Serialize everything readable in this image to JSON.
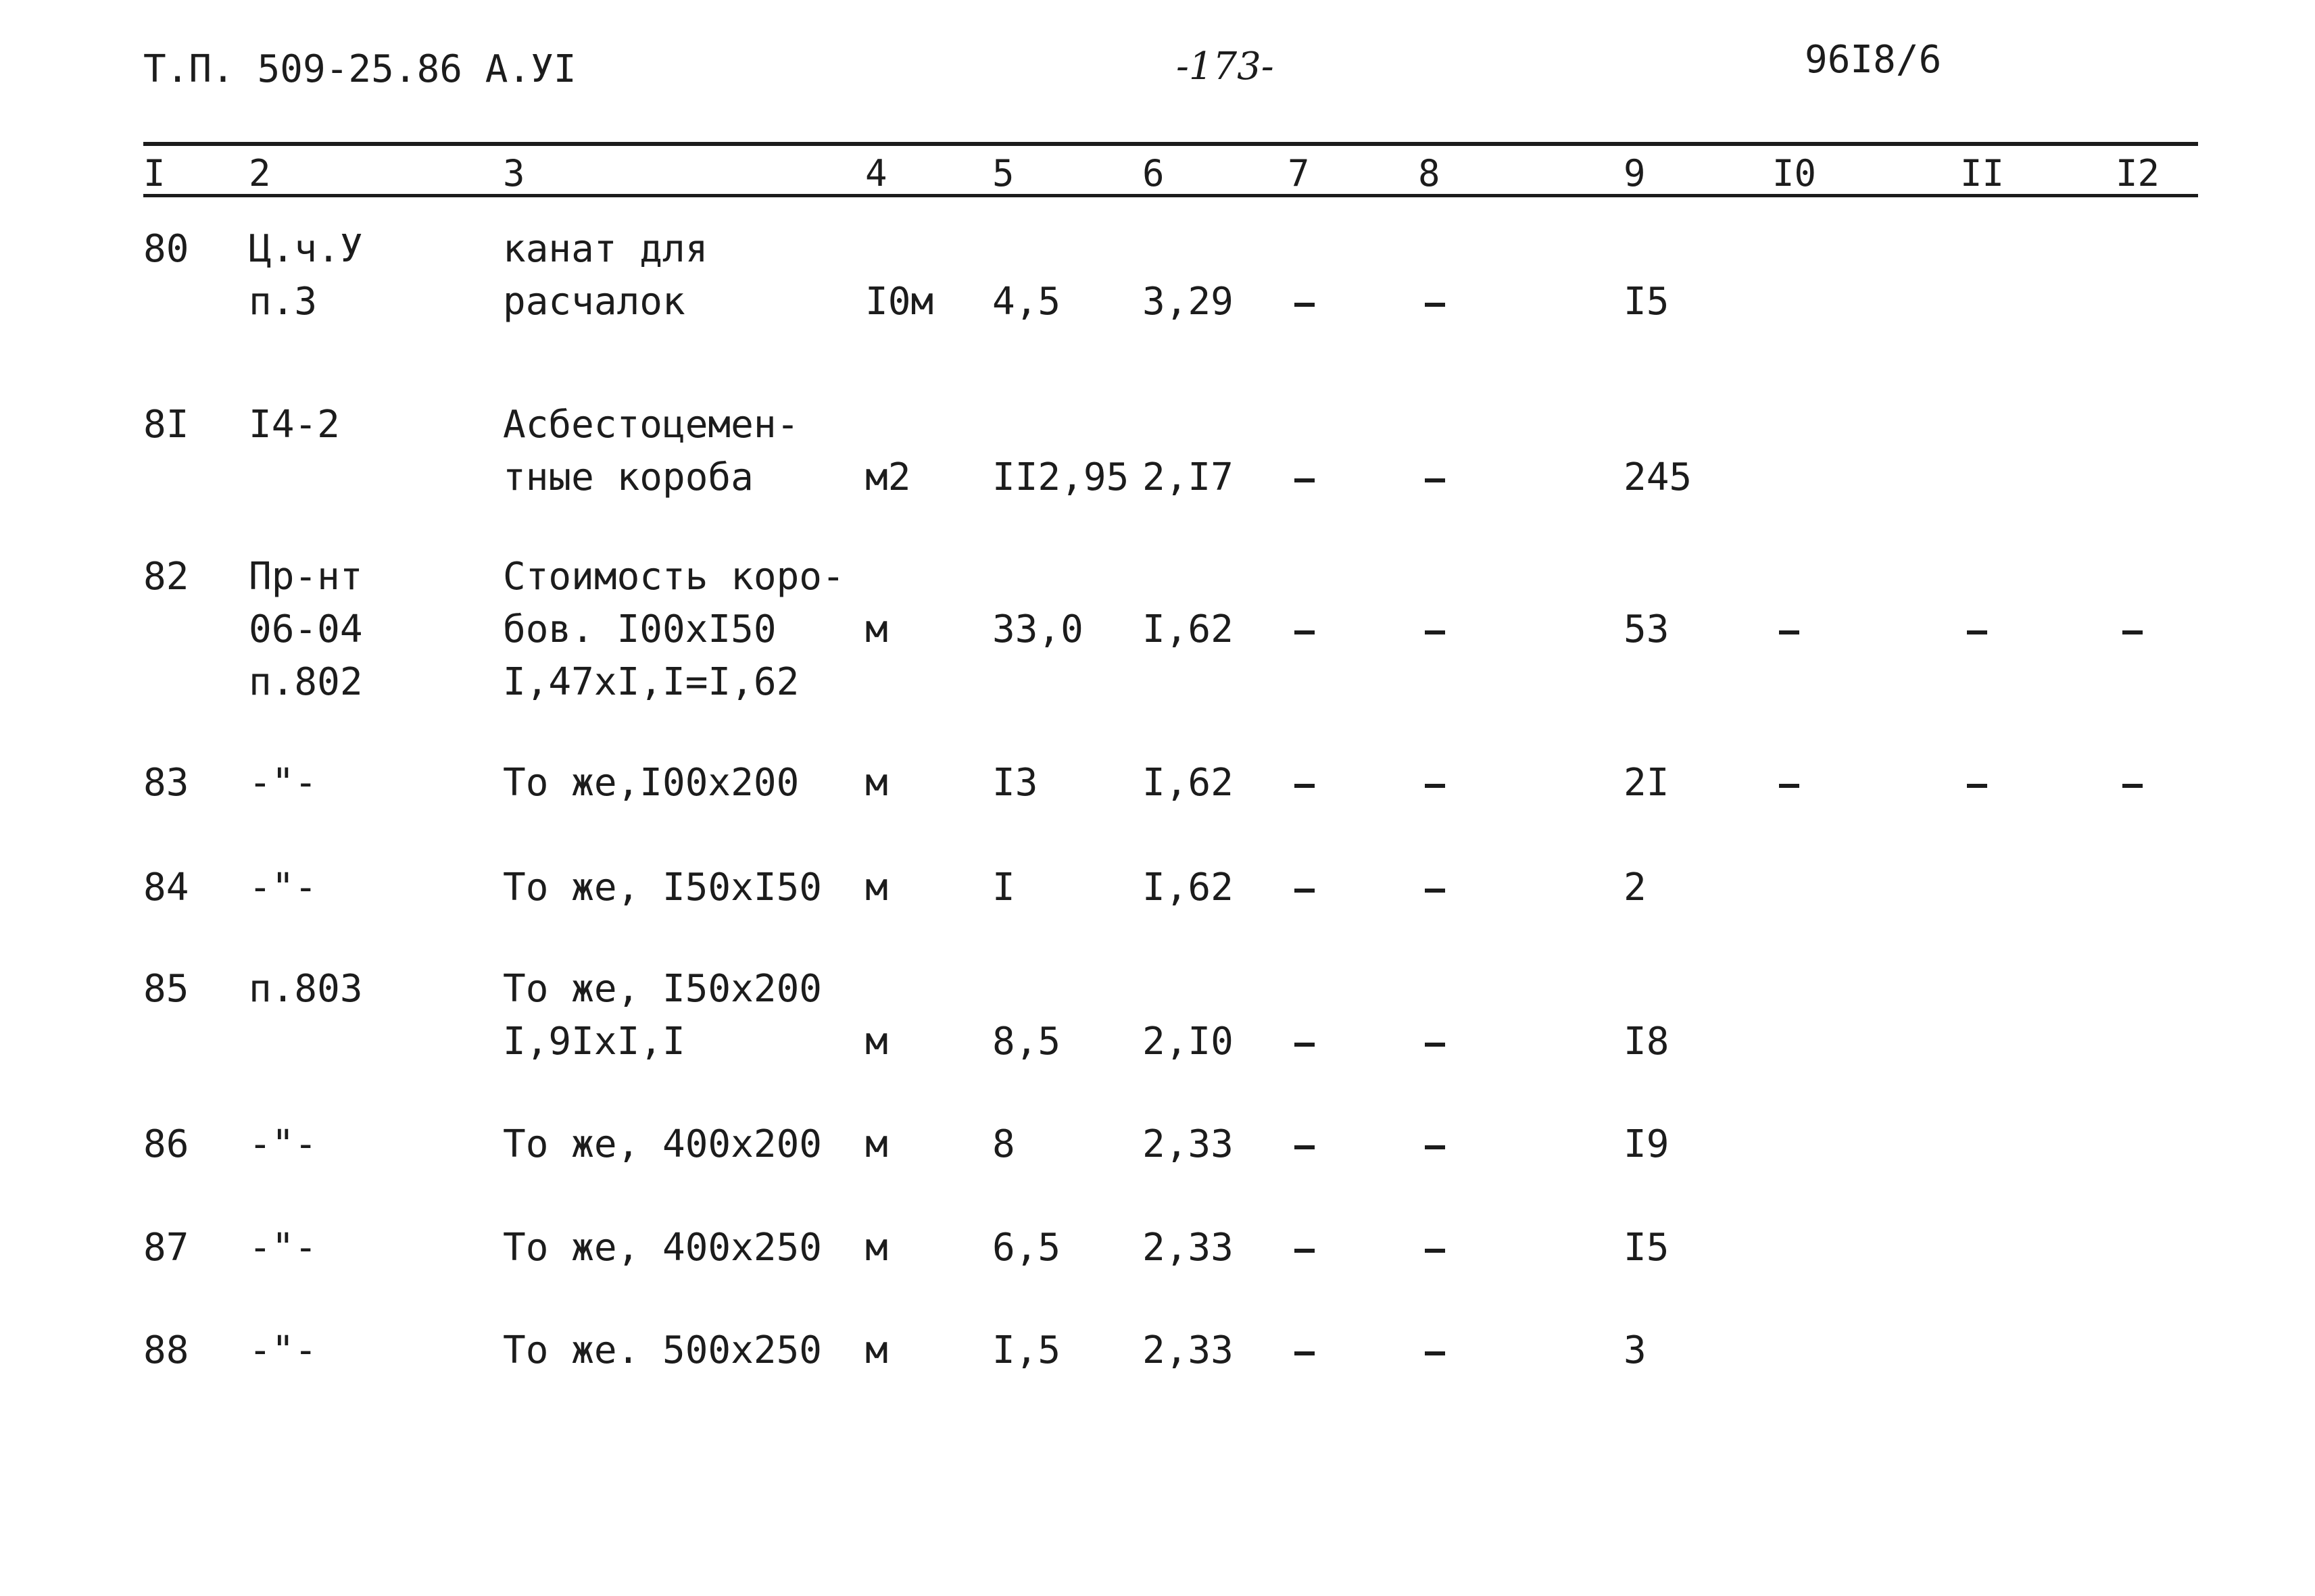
{
  "header": {
    "left": "Т.П. 509-25.86  А.УI",
    "page": "-173-",
    "right": "96I8/6"
  },
  "columns": [
    "I",
    "2",
    "3",
    "4",
    "5",
    "6",
    "7",
    "8",
    "9",
    "I0",
    "II",
    "I2"
  ],
  "rows": [
    {
      "c1": "80",
      "c2": "Ц.ч.У\nп.3",
      "c3": "канат для\nрасчалок",
      "c4": "I0м",
      "c5": "4,5",
      "c6": "3,29",
      "c7": "-",
      "c8": "-",
      "c9": "I5",
      "c10": "",
      "c11": "",
      "c12": ""
    },
    {
      "c1": "8I",
      "c2": "I4-2",
      "c3": "Асбестоцемен-\nтные короба",
      "c4": "м2",
      "c5": "II2,95",
      "c6": "2,I7",
      "c7": "-",
      "c8": "-",
      "c9": "245",
      "c10": "",
      "c11": "",
      "c12": ""
    },
    {
      "c1": "82",
      "c2": "Пр-нт\n06-04\nп.802",
      "c3": "Стоимость коро-\nбов. I00хI50\nI,47хI,I=I,62",
      "c4": "м",
      "c5": "33,0",
      "c6": "I,62",
      "c7": "-",
      "c8": "-",
      "c9": "53",
      "c10": "-",
      "c11": "-",
      "c12": "-"
    },
    {
      "c1": "83",
      "c2": "-\"-",
      "c3": "То же,I00х200",
      "c4": "м",
      "c5": "I3",
      "c6": "I,62",
      "c7": "-",
      "c8": "-",
      "c9": "2I",
      "c10": "-",
      "c11": "-",
      "c12": "-"
    },
    {
      "c1": "84",
      "c2": "-\"-",
      "c3": "То же, I50хI50",
      "c4": "м",
      "c5": "I",
      "c6": "I,62",
      "c7": "-",
      "c8": "-",
      "c9": "2",
      "c10": "",
      "c11": "",
      "c12": ""
    },
    {
      "c1": "85",
      "c2": "п.803",
      "c3": "То же, I50х200\nI,9IхI,I",
      "c4": "м",
      "c5": "8,5",
      "c6": "2,I0",
      "c7": "-",
      "c8": "-",
      "c9": "I8",
      "c10": "",
      "c11": "",
      "c12": ""
    },
    {
      "c1": "86",
      "c2": "-\"-",
      "c3": "То же, 400х200",
      "c4": "м",
      "c5": "8",
      "c6": "2,33",
      "c7": "-",
      "c8": "-",
      "c9": "I9",
      "c10": "",
      "c11": "",
      "c12": ""
    },
    {
      "c1": "87",
      "c2": "-\"-",
      "c3": "То же, 400х250",
      "c4": "м",
      "c5": "6,5",
      "c6": "2,33",
      "c7": "-",
      "c8": "-",
      "c9": "I5",
      "c10": "",
      "c11": "",
      "c12": ""
    },
    {
      "c1": "88",
      "c2": "-\"-",
      "c3": "То же. 500х250",
      "c4": "м",
      "c5": "I,5",
      "c6": "2,33",
      "c7": "-",
      "c8": "-",
      "c9": "3",
      "c10": "",
      "c11": "",
      "c12": ""
    }
  ]
}
